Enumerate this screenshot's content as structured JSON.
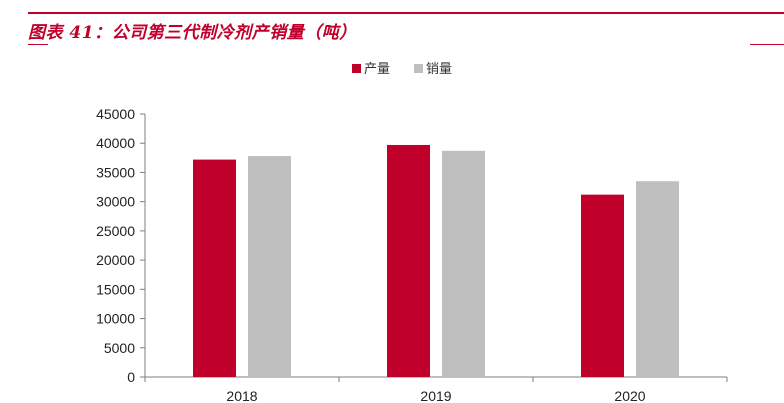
{
  "header": {
    "title": "图表 41：公司第三代制冷剂产销量（吨）"
  },
  "chart_data": {
    "type": "bar",
    "categories": [
      "2018",
      "2019",
      "2020"
    ],
    "series": [
      {
        "name": "产量",
        "color": "#c0002a",
        "values": [
          37200,
          39700,
          31200
        ]
      },
      {
        "name": "销量",
        "color": "#bfbfbf",
        "values": [
          37800,
          38700,
          33500
        ]
      }
    ],
    "title": "",
    "xlabel": "",
    "ylabel": "",
    "ylim": [
      0,
      45000
    ],
    "yticks": [
      0,
      5000,
      10000,
      15000,
      20000,
      25000,
      30000,
      35000,
      40000,
      45000
    ],
    "grid": false,
    "legend_position": "top-center"
  }
}
